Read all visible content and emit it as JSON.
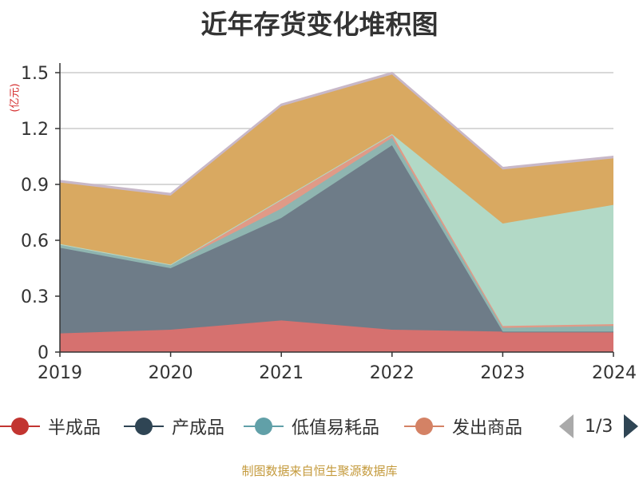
{
  "title": "近年存货变化堆积图",
  "unit_label": "(亿元)",
  "source": "制图数据来自恒生聚源数据库",
  "pager": {
    "text": "1/3"
  },
  "legend": [
    {
      "name": "半成品",
      "color": "#c23531"
    },
    {
      "name": "产成品",
      "color": "#2f4554"
    },
    {
      "name": "低值易耗品",
      "color": "#61a0a8"
    },
    {
      "name": "发出商品",
      "color": "#d48265"
    }
  ],
  "chart_data": {
    "type": "area",
    "stacked": true,
    "title": "近年存货变化堆积图",
    "ylabel": "(亿元)",
    "ylim": [
      0,
      1.5
    ],
    "yticks": [
      "0",
      "0.3",
      "0.6",
      "0.9",
      "1.2",
      "1.5"
    ],
    "grid": true,
    "x": [
      "2019",
      "2020",
      "2021",
      "2022",
      "2023",
      "2024"
    ],
    "series": [
      {
        "name": "半成品",
        "color": "#d6716f",
        "values": [
          0.1,
          0.12,
          0.17,
          0.12,
          0.11,
          0.11
        ]
      },
      {
        "name": "产成品",
        "color": "#6e7c88",
        "values": [
          0.46,
          0.33,
          0.55,
          0.99,
          0.0,
          0.0
        ]
      },
      {
        "name": "低值易耗品",
        "color": "#8fb5b0",
        "values": [
          0.02,
          0.02,
          0.05,
          0.04,
          0.02,
          0.03
        ]
      },
      {
        "name": "发出商品",
        "color": "#e09a87",
        "values": [
          0.0,
          0.0,
          0.05,
          0.02,
          0.01,
          0.01
        ]
      },
      {
        "name": "",
        "color": "#b2d9c6",
        "values": [
          0.0,
          0.0,
          0.0,
          0.0,
          0.55,
          0.64
        ]
      },
      {
        "name": "",
        "color": "#d9a961",
        "values": [
          0.33,
          0.37,
          0.5,
          0.32,
          0.29,
          0.25
        ]
      },
      {
        "name": "",
        "color": "#c8b8c8",
        "values": [
          0.01,
          0.01,
          0.01,
          0.01,
          0.01,
          0.01
        ]
      }
    ]
  }
}
